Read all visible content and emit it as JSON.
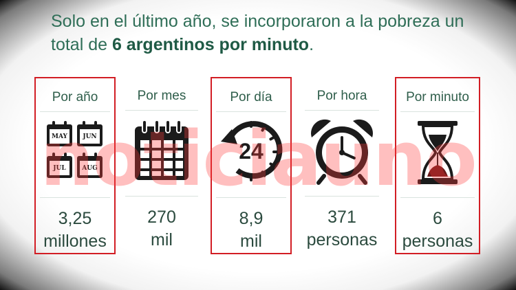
{
  "headline": {
    "part1": "Solo en el último año, se incorporaron a la pobreza un total de ",
    "bold": "6 argentinos por minuto",
    "part2": "."
  },
  "columns": [
    {
      "label": "Por año",
      "value_line1": "3,25",
      "value_line2": "millones",
      "icon": "calendar-months-icon",
      "highlighted": true,
      "months": [
        "MAY",
        "JUN",
        "JUL",
        "AUG"
      ]
    },
    {
      "label": "Por mes",
      "value_line1": "270",
      "value_line2": "mil",
      "icon": "calendar-icon",
      "highlighted": false
    },
    {
      "label": "Por día",
      "value_line1": "8,9",
      "value_line2": "mil",
      "icon": "24-hours-icon",
      "highlighted": true,
      "icon_text": "24"
    },
    {
      "label": "Por hora",
      "value_line1": "371",
      "value_line2": "personas",
      "icon": "alarm-clock-icon",
      "highlighted": false
    },
    {
      "label": "Por minuto",
      "value_line1": "6",
      "value_line2": "personas",
      "icon": "hourglass-icon",
      "highlighted": true
    }
  ],
  "watermark": "noticiauno",
  "colors": {
    "headline": "#2f6e57",
    "highlight_border": "#d21d24",
    "text": "#2b4a3e",
    "watermark": "#ff3c3c"
  }
}
